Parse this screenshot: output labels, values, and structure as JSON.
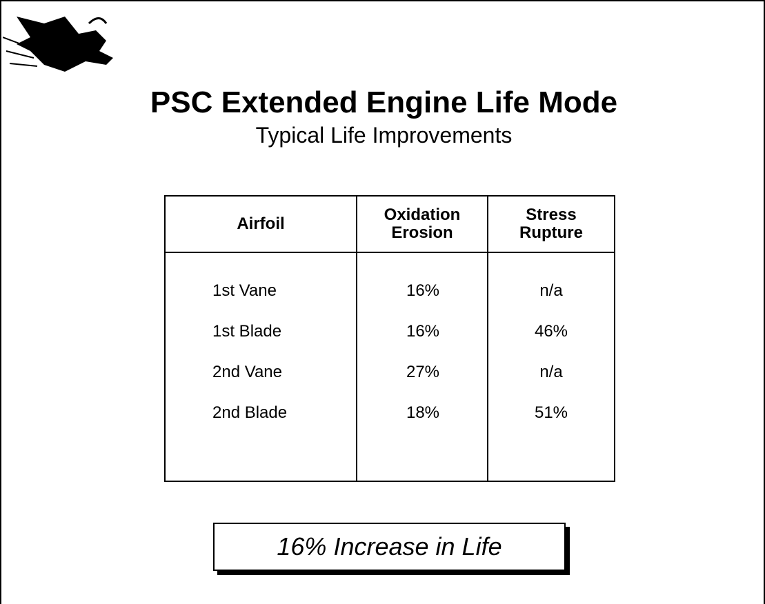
{
  "title": "PSC Extended Engine Life Mode",
  "subtitle": "Typical Life Improvements",
  "table": {
    "headers": [
      [
        "Airfoil"
      ],
      [
        "Oxidation",
        "Erosion"
      ],
      [
        "Stress",
        "Rupture"
      ]
    ],
    "rows": [
      [
        "1st Vane",
        "16%",
        "n/a"
      ],
      [
        "1st Blade",
        "16%",
        "46%"
      ],
      [
        "2nd Vane",
        "27%",
        "n/a"
      ],
      [
        "2nd Blade",
        "18%",
        "51%"
      ]
    ]
  },
  "callout": "16% Increase in Life"
}
